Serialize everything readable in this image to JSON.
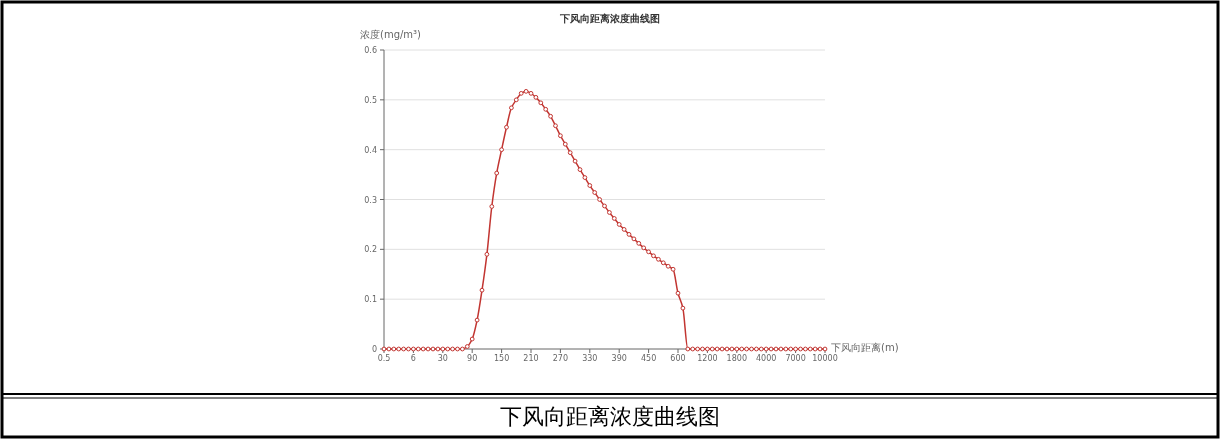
{
  "chart_data": {
    "type": "line",
    "title": "下风向距离浓度曲线图",
    "xlabel": "下风向距离(m)",
    "ylabel": "浓度(mg/m³)",
    "categories": [
      "0.5",
      null,
      null,
      null,
      null,
      null,
      "6",
      null,
      null,
      null,
      null,
      null,
      "30",
      null,
      null,
      null,
      null,
      null,
      "90",
      null,
      null,
      null,
      null,
      null,
      "150",
      null,
      null,
      null,
      null,
      null,
      "210",
      null,
      null,
      null,
      null,
      null,
      "270",
      null,
      null,
      null,
      null,
      null,
      "330",
      null,
      null,
      null,
      null,
      null,
      "390",
      null,
      null,
      null,
      null,
      null,
      "450",
      null,
      null,
      null,
      null,
      null,
      "600",
      null,
      null,
      null,
      null,
      null,
      "1200",
      null,
      null,
      null,
      null,
      null,
      "1800",
      null,
      null,
      null,
      null,
      null,
      "4000",
      null,
      null,
      null,
      null,
      null,
      "7000",
      null,
      null,
      null,
      null,
      null,
      "10000"
    ],
    "series": [
      {
        "color": "#c23531",
        "values": [
          0,
          0,
          0,
          0,
          0,
          0,
          0,
          0,
          0,
          0,
          0,
          0,
          0,
          0,
          0,
          0,
          0,
          0.005,
          0.02,
          0.058,
          0.118,
          0.19,
          0.286,
          0.353,
          0.4,
          0.445,
          0.484,
          0.5,
          0.513,
          0.517,
          0.513,
          0.505,
          0.494,
          0.481,
          0.467,
          0.448,
          0.428,
          0.411,
          0.394,
          0.377,
          0.36,
          0.344,
          0.328,
          0.314,
          0.3,
          0.287,
          0.274,
          0.262,
          0.25,
          0.24,
          0.23,
          0.221,
          0.212,
          0.203,
          0.195,
          0.187,
          0.18,
          0.173,
          0.166,
          0.16,
          0.112,
          0.082,
          0,
          0,
          0,
          0,
          0,
          0,
          0,
          0,
          0,
          0,
          0,
          0,
          0,
          0,
          0,
          0,
          0,
          0,
          0,
          0,
          0,
          0,
          0,
          0,
          0,
          0,
          0,
          0,
          0
        ]
      }
    ],
    "ylim": [
      0,
      0.6
    ],
    "yticks": [
      0,
      0.1,
      0.2,
      0.3,
      0.4,
      0.5,
      0.6
    ],
    "grid": "y",
    "marker": "circle",
    "line_style": "solid",
    "annotations": [
      "下风向距离浓度曲线图"
    ]
  }
}
